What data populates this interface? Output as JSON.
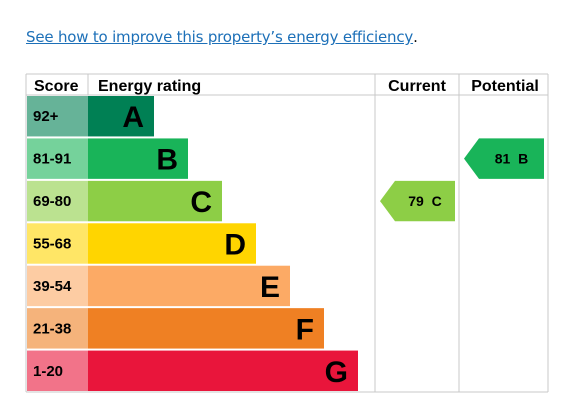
{
  "link": {
    "text": "See how to improve this property’s energy efficiency",
    "suffix": "."
  },
  "chart_data": {
    "type": "bar",
    "headers": {
      "score": "Score",
      "rating": "Energy rating",
      "current": "Current",
      "potential": "Potential"
    },
    "bands": [
      {
        "range": "92+",
        "letter": "A",
        "color": "#008054",
        "score_bg": "#66b398",
        "letter_color": "#000000"
      },
      {
        "range": "81-91",
        "letter": "B",
        "color": "#19b459",
        "score_bg": "#75d29b",
        "letter_color": "#000000"
      },
      {
        "range": "69-80",
        "letter": "C",
        "color": "#8dce46",
        "score_bg": "#bbe290",
        "letter_color": "#000000"
      },
      {
        "range": "55-68",
        "letter": "D",
        "color": "#ffd500",
        "score_bg": "#ffe666",
        "letter_color": "#000000"
      },
      {
        "range": "39-54",
        "letter": "E",
        "color": "#fcaa65",
        "score_bg": "#fdcca3",
        "letter_color": "#000000"
      },
      {
        "range": "21-38",
        "letter": "F",
        "color": "#ef8023",
        "score_bg": "#f5b37b",
        "letter_color": "#000000"
      },
      {
        "range": "1-20",
        "letter": "G",
        "color": "#e9153b",
        "score_bg": "#f27389",
        "letter_color": "#000000"
      }
    ],
    "current": {
      "value": 79,
      "letter": "C",
      "label": "79  C",
      "color": "#8dce46"
    },
    "potential": {
      "value": 81,
      "letter": "B",
      "label": "81  B",
      "color": "#19b459"
    }
  }
}
